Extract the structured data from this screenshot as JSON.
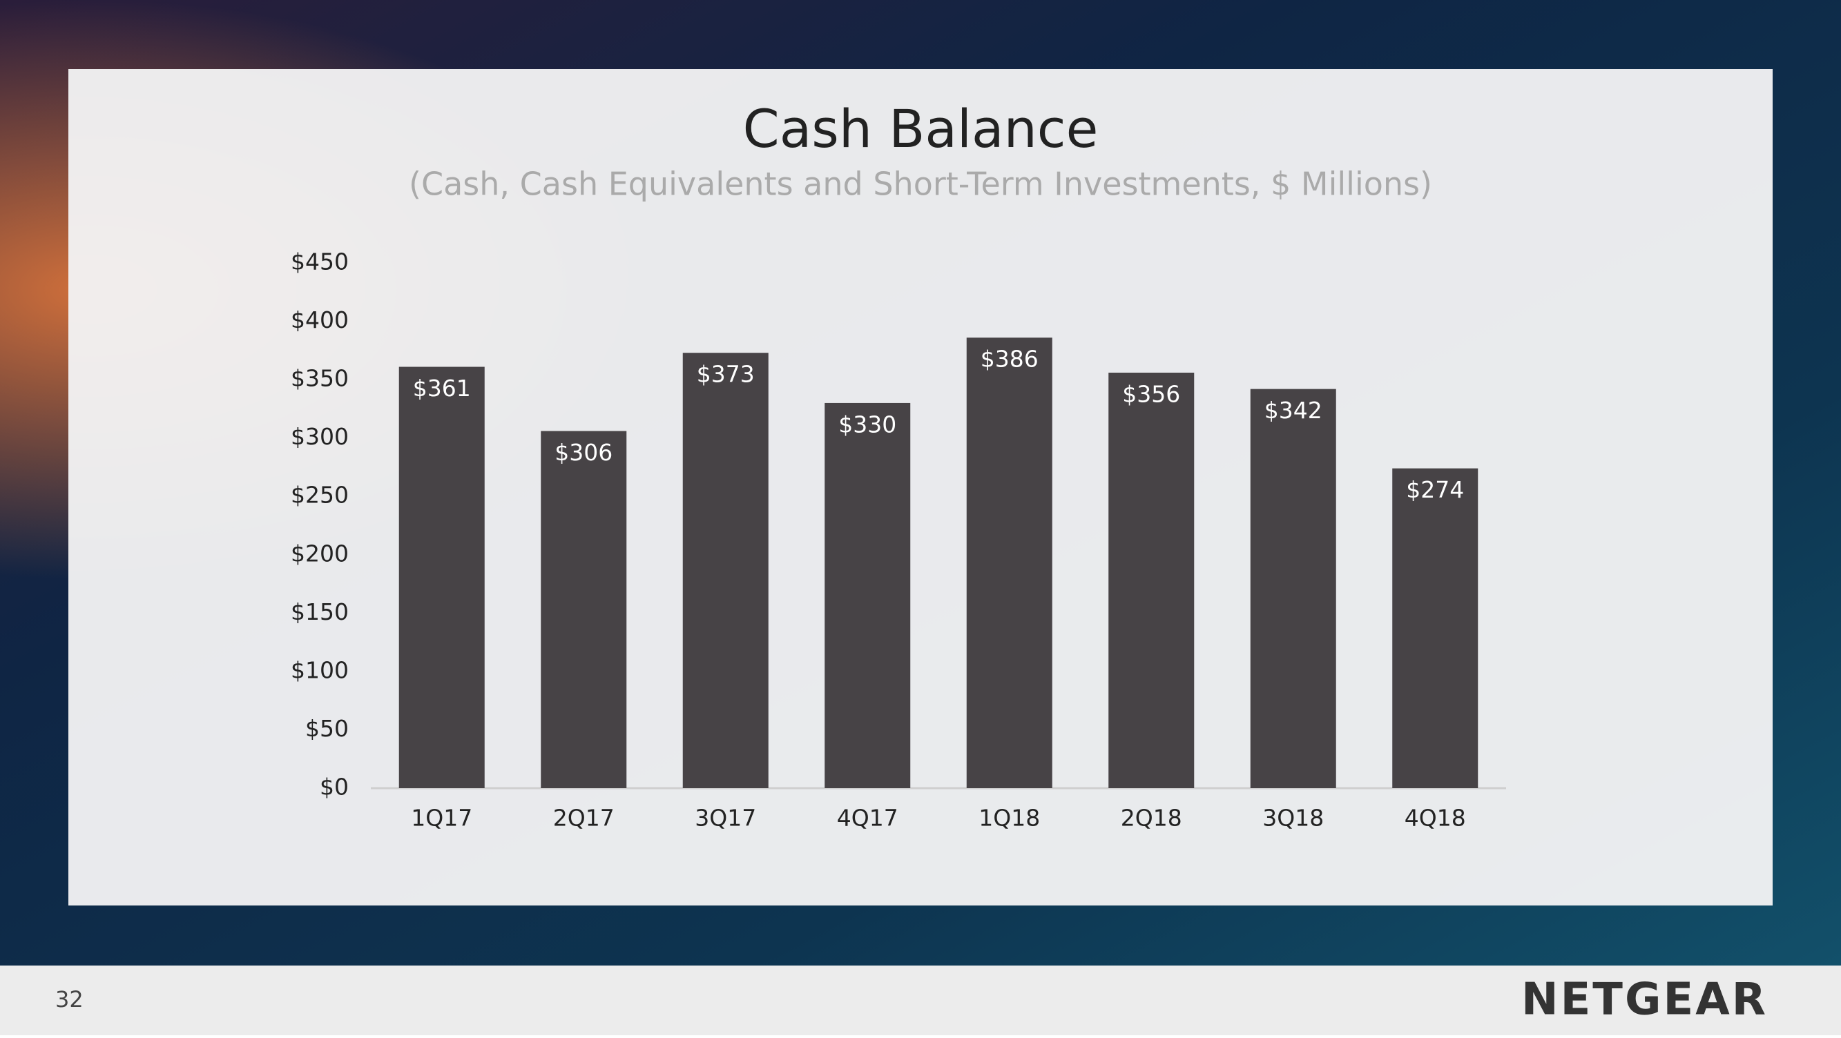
{
  "chart_data": {
    "type": "bar",
    "title": "Cash Balance",
    "subtitle": "(Cash, Cash Equivalents and Short-Term Investments, $ Millions)",
    "categories": [
      "1Q17",
      "2Q17",
      "3Q17",
      "4Q17",
      "1Q18",
      "2Q18",
      "3Q18",
      "4Q18"
    ],
    "values": [
      361,
      306,
      373,
      330,
      386,
      356,
      342,
      274
    ],
    "value_labels": [
      "$361",
      "$306",
      "$373",
      "$330",
      "$386",
      "$356",
      "$342",
      "$274"
    ],
    "color": "#474346",
    "ylim": [
      0,
      450
    ],
    "yticks": [
      {
        "value": 0,
        "label": "$0"
      },
      {
        "value": 50,
        "label": "$50"
      },
      {
        "value": 100,
        "label": "$100"
      },
      {
        "value": 150,
        "label": "$150"
      },
      {
        "value": 200,
        "label": "$200"
      },
      {
        "value": 250,
        "label": "$250"
      },
      {
        "value": 300,
        "label": "$300"
      },
      {
        "value": 350,
        "label": "$350"
      },
      {
        "value": 400,
        "label": "$400"
      },
      {
        "value": 450,
        "label": "$450"
      }
    ],
    "grid": false
  },
  "page_number": "32",
  "logo": "NETGEAR"
}
